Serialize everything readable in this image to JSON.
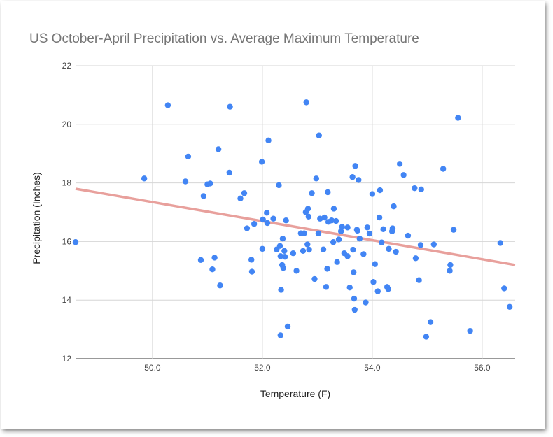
{
  "chart_data": {
    "type": "scatter",
    "title": "US October-April Precipitation vs. Average Maximum Temperature",
    "xlabel": "Temperature (F)",
    "ylabel": "Precipitation (Inches)",
    "xlim": [
      48.6,
      56.6
    ],
    "ylim": [
      12,
      22
    ],
    "xticks": [
      50,
      52,
      54,
      56
    ],
    "xtick_labels": [
      "50.0",
      "52.0",
      "54.0",
      "56.0"
    ],
    "yticks": [
      12,
      14,
      16,
      18,
      20,
      22
    ],
    "ytick_labels": [
      "12",
      "14",
      "16",
      "18",
      "20",
      "22"
    ],
    "grid": true,
    "legend": "none",
    "colors": {
      "points": "#4285f4",
      "trendline": "#e8a09c",
      "title": "#757575",
      "grid": "#d6d6d6"
    },
    "trendline": {
      "type": "linear",
      "points": [
        [
          48.6,
          17.8
        ],
        [
          56.6,
          15.2
        ]
      ]
    },
    "points": [
      [
        48.6,
        15.98
      ],
      [
        49.85,
        18.15
      ],
      [
        50.28,
        20.65
      ],
      [
        50.6,
        18.05
      ],
      [
        50.65,
        18.9
      ],
      [
        50.88,
        15.37
      ],
      [
        50.93,
        17.55
      ],
      [
        51.0,
        17.95
      ],
      [
        51.05,
        17.98
      ],
      [
        51.09,
        15.05
      ],
      [
        51.13,
        15.45
      ],
      [
        51.2,
        19.15
      ],
      [
        51.23,
        14.5
      ],
      [
        51.4,
        18.35
      ],
      [
        51.41,
        20.6
      ],
      [
        51.6,
        17.47
      ],
      [
        51.67,
        17.65
      ],
      [
        51.72,
        16.45
      ],
      [
        51.8,
        15.38
      ],
      [
        51.81,
        14.97
      ],
      [
        51.85,
        16.6
      ],
      [
        51.99,
        18.72
      ],
      [
        52.0,
        15.75
      ],
      [
        52.01,
        16.75
      ],
      [
        52.08,
        16.98
      ],
      [
        52.09,
        16.63
      ],
      [
        52.11,
        19.45
      ],
      [
        52.2,
        16.78
      ],
      [
        52.26,
        15.73
      ],
      [
        52.3,
        17.92
      ],
      [
        52.32,
        15.85
      ],
      [
        52.33,
        15.5
      ],
      [
        52.33,
        12.8
      ],
      [
        52.34,
        14.35
      ],
      [
        52.36,
        15.2
      ],
      [
        52.37,
        16.1
      ],
      [
        52.38,
        15.1
      ],
      [
        52.4,
        15.68
      ],
      [
        52.41,
        15.48
      ],
      [
        52.43,
        16.72
      ],
      [
        52.46,
        13.1
      ],
      [
        52.56,
        15.6
      ],
      [
        52.62,
        15.0
      ],
      [
        52.7,
        16.28
      ],
      [
        52.74,
        15.68
      ],
      [
        52.76,
        16.28
      ],
      [
        52.79,
        17.0
      ],
      [
        52.8,
        20.75
      ],
      [
        52.82,
        15.9
      ],
      [
        52.83,
        17.12
      ],
      [
        52.84,
        16.85
      ],
      [
        52.85,
        15.72
      ],
      [
        52.9,
        17.65
      ],
      [
        52.95,
        14.72
      ],
      [
        52.98,
        18.15
      ],
      [
        53.02,
        16.28
      ],
      [
        53.03,
        19.62
      ],
      [
        53.05,
        16.78
      ],
      [
        53.11,
        15.73
      ],
      [
        53.13,
        16.82
      ],
      [
        53.16,
        14.45
      ],
      [
        53.18,
        15.07
      ],
      [
        53.19,
        17.68
      ],
      [
        53.2,
        16.67
      ],
      [
        53.26,
        16.72
      ],
      [
        53.29,
        15.98
      ],
      [
        53.3,
        17.12
      ],
      [
        53.34,
        16.7
      ],
      [
        53.36,
        15.3
      ],
      [
        53.39,
        16.07
      ],
      [
        53.43,
        16.35
      ],
      [
        53.45,
        16.5
      ],
      [
        53.49,
        15.6
      ],
      [
        53.55,
        16.48
      ],
      [
        53.55,
        15.5
      ],
      [
        53.59,
        14.43
      ],
      [
        53.64,
        18.2
      ],
      [
        53.65,
        15.72
      ],
      [
        53.66,
        14.95
      ],
      [
        53.67,
        14.05
      ],
      [
        53.68,
        13.67
      ],
      [
        53.69,
        18.58
      ],
      [
        53.72,
        16.4
      ],
      [
        53.73,
        16.37
      ],
      [
        53.75,
        18.1
      ],
      [
        53.77,
        16.1
      ],
      [
        53.84,
        15.57
      ],
      [
        53.88,
        13.92
      ],
      [
        53.91,
        16.48
      ],
      [
        53.95,
        16.27
      ],
      [
        54.0,
        17.62
      ],
      [
        54.02,
        14.62
      ],
      [
        54.05,
        15.23
      ],
      [
        54.1,
        14.3
      ],
      [
        54.13,
        16.82
      ],
      [
        54.14,
        17.75
      ],
      [
        54.17,
        15.97
      ],
      [
        54.2,
        16.42
      ],
      [
        54.27,
        14.45
      ],
      [
        54.29,
        14.38
      ],
      [
        54.3,
        15.75
      ],
      [
        54.36,
        16.35
      ],
      [
        54.37,
        16.45
      ],
      [
        54.39,
        17.2
      ],
      [
        54.43,
        15.65
      ],
      [
        54.5,
        18.65
      ],
      [
        54.57,
        18.27
      ],
      [
        54.65,
        16.2
      ],
      [
        54.77,
        17.82
      ],
      [
        54.79,
        15.43
      ],
      [
        54.85,
        14.68
      ],
      [
        54.88,
        15.88
      ],
      [
        54.89,
        17.78
      ],
      [
        54.98,
        12.75
      ],
      [
        55.06,
        13.25
      ],
      [
        55.12,
        15.9
      ],
      [
        55.29,
        18.48
      ],
      [
        55.41,
        15.0
      ],
      [
        55.42,
        15.2
      ],
      [
        55.48,
        16.4
      ],
      [
        55.56,
        20.22
      ],
      [
        55.78,
        12.95
      ],
      [
        56.33,
        15.95
      ],
      [
        56.4,
        14.4
      ],
      [
        56.5,
        13.77
      ]
    ]
  }
}
